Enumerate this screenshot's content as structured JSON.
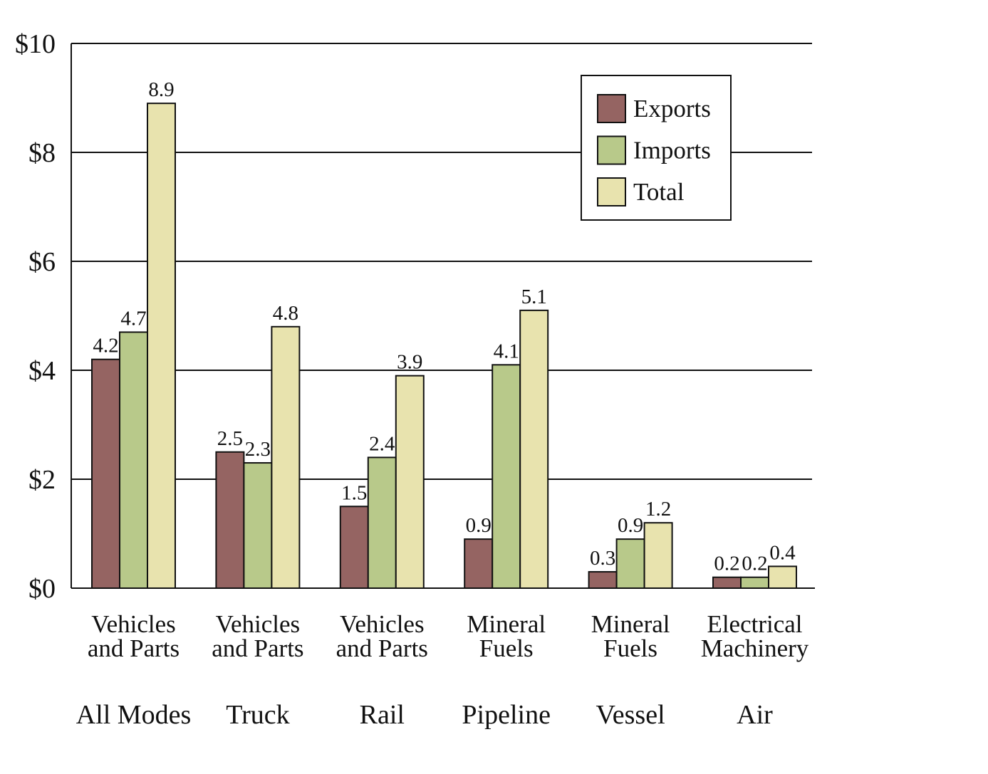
{
  "chart_data": {
    "type": "bar",
    "title": "",
    "xlabel": "",
    "ylabel": "",
    "ylim": [
      0,
      10
    ],
    "yticks": [
      0,
      2,
      4,
      6,
      8,
      10
    ],
    "ytick_labels": [
      "$0",
      "$2",
      "$4",
      "$6",
      "$8",
      "$10"
    ],
    "grid": true,
    "legend_position": "top-right",
    "categories": [
      {
        "commodity": [
          "Vehicles",
          "and Parts"
        ],
        "mode": "All Modes"
      },
      {
        "commodity": [
          "Vehicles",
          "and Parts"
        ],
        "mode": "Truck"
      },
      {
        "commodity": [
          "Vehicles",
          "and Parts"
        ],
        "mode": "Rail"
      },
      {
        "commodity": [
          "Mineral",
          "Fuels"
        ],
        "mode": "Pipeline"
      },
      {
        "commodity": [
          "Mineral",
          "Fuels"
        ],
        "mode": "Vessel"
      },
      {
        "commodity": [
          "Electrical",
          "Machinery"
        ],
        "mode": "Air"
      }
    ],
    "series": [
      {
        "name": "Exports",
        "color": "#956462",
        "values": [
          4.2,
          2.5,
          1.5,
          0.9,
          0.3,
          0.2
        ],
        "labels": [
          "4.2",
          "2.5",
          "1.5",
          "0.9",
          "0.3",
          "0.2"
        ]
      },
      {
        "name": "Imports",
        "color": "#b8c98a",
        "values": [
          4.7,
          2.3,
          2.4,
          4.1,
          0.9,
          0.2
        ],
        "labels": [
          "4.7",
          "2.3",
          "2.4",
          "4.1",
          "0.9",
          "0.2"
        ]
      },
      {
        "name": "Total",
        "color": "#e8e3ae",
        "values": [
          8.9,
          4.8,
          3.9,
          5.1,
          1.2,
          0.4
        ],
        "labels": [
          "8.9",
          "4.8",
          "3.9",
          "5.1",
          "1.2",
          "0.4"
        ]
      }
    ]
  }
}
